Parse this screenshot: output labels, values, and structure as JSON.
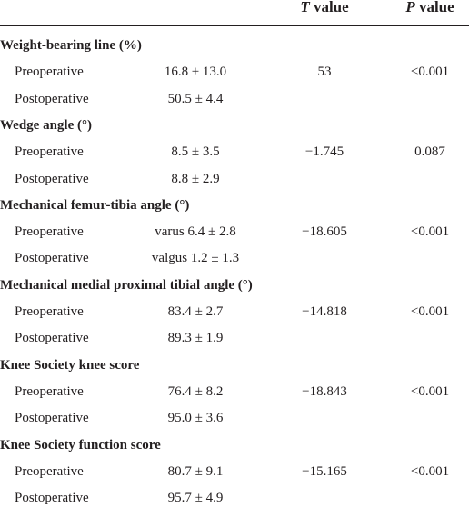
{
  "header": {
    "columns": [
      {
        "symbol": "T",
        "word": "value"
      },
      {
        "symbol": "P",
        "word": "value"
      }
    ]
  },
  "groups": [
    {
      "label": "Weight-bearing line (%)",
      "rows": [
        [
          "Preoperative",
          "16.8 ± 13.0",
          "53",
          "<0.001"
        ],
        [
          "Postoperative",
          "50.5 ± 4.4"
        ]
      ]
    },
    {
      "label": "Wedge angle (°)",
      "rows": [
        [
          "Preoperative",
          "8.5 ± 3.5",
          "−1.745",
          "0.087"
        ],
        [
          "Postoperative",
          "8.8 ± 2.9"
        ]
      ]
    },
    {
      "label": "Mechanical femur-tibia angle (°)",
      "rows": [
        [
          "Preoperative",
          "varus 6.4 ± 2.8",
          "−18.605",
          "<0.001"
        ],
        [
          "Postoperative",
          "valgus 1.2 ± 1.3"
        ]
      ]
    },
    {
      "label": "Mechanical medial proximal tibial angle (°)",
      "rows": [
        [
          "Preoperative",
          "83.4 ± 2.7",
          "−14.818",
          "<0.001"
        ],
        [
          "Postoperative",
          "89.3 ± 1.9"
        ]
      ]
    },
    {
      "label": "Knee Society knee score",
      "rows": [
        [
          "Preoperative",
          "76.4 ± 8.2",
          "−18.843",
          "<0.001"
        ],
        [
          "Postoperative",
          "95.0 ± 3.6"
        ]
      ]
    },
    {
      "label": "Knee Society function score",
      "rows": [
        [
          "Preoperative",
          "80.7 ± 9.1",
          "−15.165",
          "<0.001"
        ],
        [
          "Postoperative",
          "95.7 ± 4.9"
        ]
      ]
    }
  ]
}
